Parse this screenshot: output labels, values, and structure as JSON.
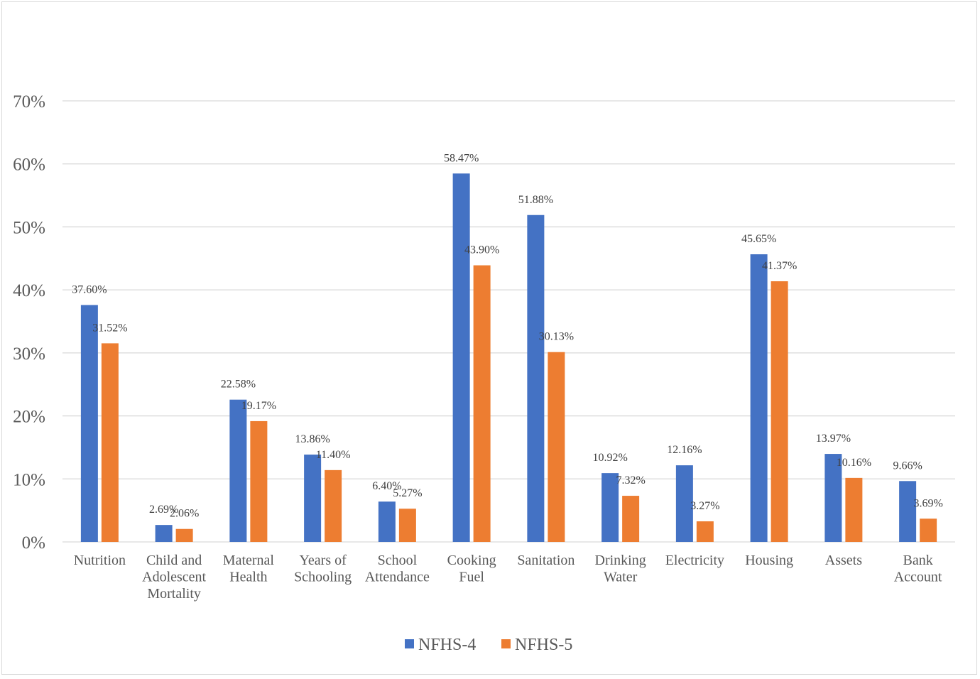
{
  "chart_data": {
    "type": "bar",
    "title": "",
    "xlabel": "",
    "ylabel": "",
    "ylim": [
      0,
      70
    ],
    "y_unit": "%",
    "y_ticks": [
      "0%",
      "10%",
      "20%",
      "30%",
      "40%",
      "50%",
      "60%",
      "70%"
    ],
    "grid": true,
    "legend_position": "bottom",
    "categories": [
      [
        "Nutrition"
      ],
      [
        "Child and",
        "Adolescent",
        "Mortality"
      ],
      [
        "Maternal",
        "Health"
      ],
      [
        "Years of",
        "Schooling"
      ],
      [
        "School",
        "Attendance"
      ],
      [
        "Cooking",
        "Fuel"
      ],
      [
        "Sanitation"
      ],
      [
        "Drinking",
        "Water"
      ],
      [
        "Electricity"
      ],
      [
        "Housing"
      ],
      [
        "Assets"
      ],
      [
        "Bank",
        "Account"
      ]
    ],
    "series": [
      {
        "name": "NFHS-4",
        "color": "#4472c4",
        "values": [
          37.6,
          2.69,
          22.58,
          13.86,
          6.4,
          58.47,
          51.88,
          10.92,
          12.16,
          45.65,
          13.97,
          9.66
        ],
        "labels": [
          "37.60%",
          "2.69%",
          "22.58%",
          "13.86%",
          "6.40%",
          "58.47%",
          "51.88%",
          "10.92%",
          "12.16%",
          "45.65%",
          "13.97%",
          "9.66%"
        ]
      },
      {
        "name": "NFHS-5",
        "color": "#ed7d31",
        "values": [
          31.52,
          2.06,
          19.17,
          11.4,
          5.27,
          43.9,
          30.13,
          7.32,
          3.27,
          41.37,
          10.16,
          3.69
        ],
        "labels": [
          "31.52%",
          "2.06%",
          "19.17%",
          "11.40%",
          "5.27%",
          "43.90%",
          "30.13%",
          "7.32%",
          "3.27%",
          "41.37%",
          "10.16%",
          "3.69%"
        ]
      }
    ]
  }
}
